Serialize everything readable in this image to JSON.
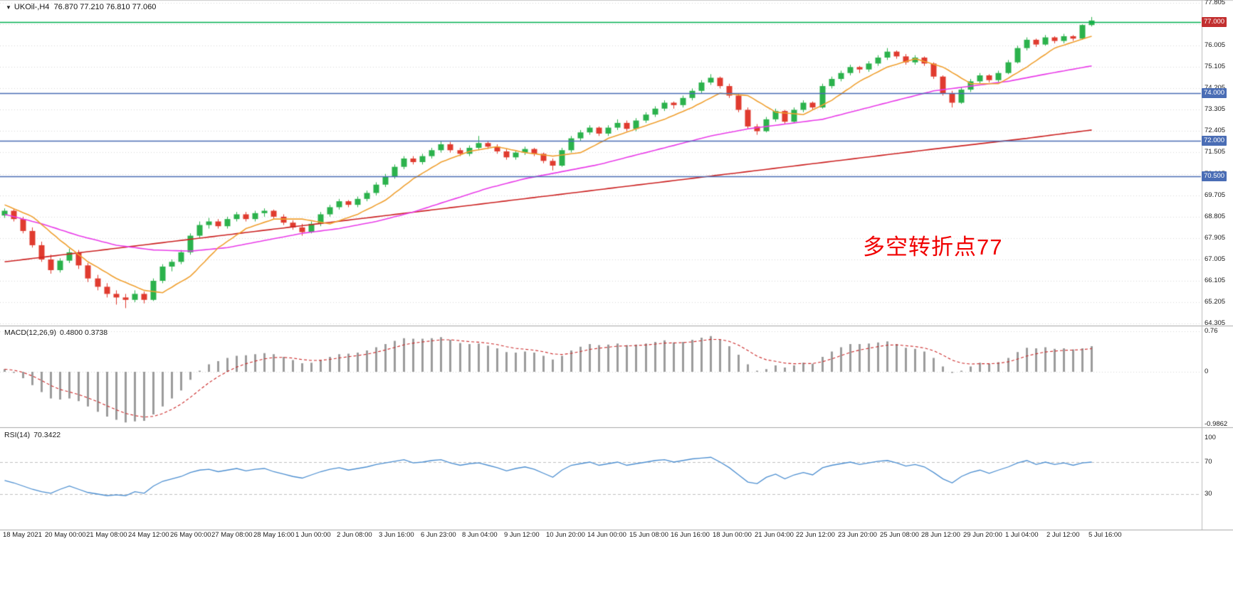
{
  "symbol_bar": {
    "collapse_icon": "▼",
    "symbol": "UKOil-,H4",
    "ohlc": "76.870 77.210 76.810 77.060"
  },
  "annotation": {
    "text": "多空转折点77",
    "color": "#f00000"
  },
  "macd_panel": {
    "label": "MACD(12,26,9)",
    "values": "0.4800 0.3738",
    "axis": [
      "0.76",
      "0",
      "-0.9862"
    ]
  },
  "rsi_panel": {
    "label": "RSI(14)",
    "value": "70.3422",
    "axis": [
      "100",
      "70",
      "30"
    ]
  },
  "colors": {
    "up": "#2bb24c",
    "down": "#e03b2f",
    "ma_fast": "#f0a030",
    "ma_mid": "#e93ce9",
    "ma_slow": "#cc2222",
    "hline_blue": "#4a6db5",
    "hline_green": "#00b050",
    "price_box_red": "#c22f2f",
    "macd_hist": "#9b9b9b",
    "macd_signal": "#cc2929",
    "rsi_line": "#4d8fd1",
    "grid": "#d8d8d8",
    "separator": "#a8a8a8",
    "axis_text": "#1a1a1a"
  },
  "chart_data": {
    "type": "candlestick",
    "symbol": "UKOil-",
    "timeframe": "H4",
    "title": "UKOil-,H4 76.870 77.210 76.810 77.060",
    "current_bar": {
      "open": 76.87,
      "high": 77.21,
      "low": 76.81,
      "close": 77.06
    },
    "y_axis": {
      "min": 64.305,
      "max": 77.805,
      "step": 0.9
    },
    "horizontal_lines": [
      {
        "price": 77.0,
        "label": "77.000",
        "color": "green"
      },
      {
        "price": 74.0,
        "label": "74.000",
        "color": "blue"
      },
      {
        "price": 72.0,
        "label": "72.000",
        "color": "blue"
      },
      {
        "price": 70.5,
        "label": "70.500",
        "color": "blue"
      }
    ],
    "x_labels": [
      "18 May 2021",
      "20 May 00:00",
      "21 May 08:00",
      "24 May 12:00",
      "26 May 00:00",
      "27 May 08:00",
      "28 May 16:00",
      "1 Jun 00:00",
      "2 Jun 08:00",
      "3 Jun 16:00",
      "6 Jun 23:00",
      "8 Jun 04:00",
      "9 Jun 12:00",
      "10 Jun 20:00",
      "14 Jun 00:00",
      "15 Jun 08:00",
      "16 Jun 16:00",
      "18 Jun 00:00",
      "21 Jun 04:00",
      "22 Jun 12:00",
      "23 Jun 20:00",
      "25 Jun 08:00",
      "28 Jun 12:00",
      "29 Jun 20:00",
      "1 Jul 04:00",
      "2 Jul 12:00",
      "5 Jul 16:00"
    ],
    "candles": [
      [
        68.85,
        69.15,
        68.75,
        69.05
      ],
      [
        69.05,
        69.15,
        68.6,
        68.7
      ],
      [
        68.7,
        68.8,
        68.1,
        68.2
      ],
      [
        68.2,
        68.35,
        67.5,
        67.6
      ],
      [
        67.6,
        67.75,
        66.9,
        67.0
      ],
      [
        67.0,
        67.2,
        66.4,
        66.55
      ],
      [
        66.55,
        67.05,
        66.45,
        66.95
      ],
      [
        66.95,
        67.45,
        66.85,
        67.3
      ],
      [
        67.3,
        67.4,
        66.6,
        66.75
      ],
      [
        66.75,
        66.85,
        66.05,
        66.2
      ],
      [
        66.2,
        66.35,
        65.7,
        65.85
      ],
      [
        65.85,
        66.0,
        65.4,
        65.55
      ],
      [
        65.55,
        65.7,
        65.1,
        65.4
      ],
      [
        65.4,
        65.55,
        64.95,
        65.3
      ],
      [
        65.3,
        65.7,
        65.2,
        65.55
      ],
      [
        65.55,
        65.65,
        65.15,
        65.3
      ],
      [
        65.3,
        66.2,
        65.25,
        66.1
      ],
      [
        66.1,
        66.8,
        66.0,
        66.7
      ],
      [
        66.7,
        67.0,
        66.5,
        66.9
      ],
      [
        66.9,
        67.4,
        66.8,
        67.3
      ],
      [
        67.3,
        68.1,
        67.2,
        68.0
      ],
      [
        68.0,
        68.6,
        67.9,
        68.45
      ],
      [
        68.45,
        68.75,
        68.3,
        68.6
      ],
      [
        68.6,
        68.7,
        68.3,
        68.4
      ],
      [
        68.4,
        68.8,
        68.3,
        68.7
      ],
      [
        68.7,
        69.0,
        68.6,
        68.9
      ],
      [
        68.9,
        69.0,
        68.6,
        68.7
      ],
      [
        68.7,
        69.05,
        68.6,
        68.95
      ],
      [
        68.95,
        69.15,
        68.8,
        69.05
      ],
      [
        69.05,
        69.1,
        68.7,
        68.8
      ],
      [
        68.8,
        68.9,
        68.45,
        68.55
      ],
      [
        68.55,
        68.65,
        68.25,
        68.35
      ],
      [
        68.35,
        68.5,
        68.0,
        68.15
      ],
      [
        68.15,
        68.6,
        68.1,
        68.5
      ],
      [
        68.5,
        69.0,
        68.4,
        68.9
      ],
      [
        68.9,
        69.3,
        68.8,
        69.2
      ],
      [
        69.2,
        69.55,
        69.1,
        69.45
      ],
      [
        69.45,
        69.5,
        69.2,
        69.3
      ],
      [
        69.3,
        69.65,
        69.2,
        69.55
      ],
      [
        69.55,
        69.9,
        69.45,
        69.8
      ],
      [
        69.8,
        70.25,
        69.7,
        70.15
      ],
      [
        70.15,
        70.6,
        70.05,
        70.5
      ],
      [
        70.5,
        71.0,
        70.4,
        70.9
      ],
      [
        70.9,
        71.35,
        70.8,
        71.25
      ],
      [
        71.25,
        71.35,
        71.0,
        71.1
      ],
      [
        71.1,
        71.45,
        71.0,
        71.35
      ],
      [
        71.35,
        71.7,
        71.25,
        71.6
      ],
      [
        71.6,
        72.0,
        71.5,
        71.85
      ],
      [
        71.85,
        71.95,
        71.5,
        71.6
      ],
      [
        71.6,
        71.7,
        71.35,
        71.45
      ],
      [
        71.45,
        71.8,
        71.35,
        71.7
      ],
      [
        71.7,
        72.2,
        71.6,
        71.9
      ],
      [
        71.9,
        72.0,
        71.65,
        71.75
      ],
      [
        71.75,
        71.85,
        71.45,
        71.55
      ],
      [
        71.55,
        71.65,
        71.2,
        71.3
      ],
      [
        71.3,
        71.6,
        71.2,
        71.5
      ],
      [
        71.5,
        71.75,
        71.4,
        71.65
      ],
      [
        71.65,
        71.7,
        71.35,
        71.45
      ],
      [
        71.45,
        71.5,
        71.05,
        71.15
      ],
      [
        71.15,
        71.25,
        70.75,
        70.95
      ],
      [
        70.95,
        71.7,
        70.9,
        71.6
      ],
      [
        71.6,
        72.2,
        71.5,
        72.1
      ],
      [
        72.1,
        72.45,
        72.0,
        72.35
      ],
      [
        72.35,
        72.65,
        72.25,
        72.55
      ],
      [
        72.55,
        72.6,
        72.2,
        72.3
      ],
      [
        72.3,
        72.65,
        72.2,
        72.55
      ],
      [
        72.55,
        72.9,
        72.45,
        72.75
      ],
      [
        72.75,
        72.85,
        72.4,
        72.5
      ],
      [
        72.5,
        72.95,
        72.4,
        72.85
      ],
      [
        72.85,
        73.2,
        72.75,
        73.1
      ],
      [
        73.1,
        73.45,
        73.0,
        73.35
      ],
      [
        73.35,
        73.7,
        73.25,
        73.6
      ],
      [
        73.6,
        73.65,
        73.35,
        73.5
      ],
      [
        73.5,
        73.9,
        73.4,
        73.8
      ],
      [
        73.8,
        74.2,
        73.7,
        74.1
      ],
      [
        74.1,
        74.55,
        74.0,
        74.45
      ],
      [
        74.45,
        74.8,
        74.35,
        74.65
      ],
      [
        74.65,
        74.7,
        74.2,
        74.3
      ],
      [
        74.3,
        74.4,
        73.8,
        73.9
      ],
      [
        73.9,
        74.0,
        73.2,
        73.3
      ],
      [
        73.3,
        73.4,
        72.5,
        72.6
      ],
      [
        72.6,
        72.7,
        72.25,
        72.4
      ],
      [
        72.4,
        73.0,
        72.35,
        72.9
      ],
      [
        72.9,
        73.35,
        72.8,
        73.25
      ],
      [
        73.25,
        73.3,
        72.7,
        72.8
      ],
      [
        72.8,
        73.4,
        72.75,
        73.3
      ],
      [
        73.3,
        73.7,
        73.2,
        73.6
      ],
      [
        73.6,
        73.65,
        73.3,
        73.4
      ],
      [
        73.4,
        74.4,
        73.35,
        74.3
      ],
      [
        74.3,
        74.7,
        74.2,
        74.6
      ],
      [
        74.6,
        74.95,
        74.5,
        74.85
      ],
      [
        74.85,
        75.2,
        74.75,
        75.1
      ],
      [
        75.1,
        75.15,
        74.85,
        75.0
      ],
      [
        75.0,
        75.35,
        74.9,
        75.25
      ],
      [
        75.25,
        75.6,
        75.15,
        75.5
      ],
      [
        75.5,
        75.9,
        75.4,
        75.75
      ],
      [
        75.75,
        75.8,
        75.45,
        75.55
      ],
      [
        75.55,
        75.65,
        75.2,
        75.3
      ],
      [
        75.3,
        75.6,
        75.2,
        75.5
      ],
      [
        75.5,
        75.55,
        75.15,
        75.25
      ],
      [
        75.25,
        75.3,
        74.6,
        74.7
      ],
      [
        74.7,
        74.75,
        73.9,
        74.0
      ],
      [
        74.0,
        74.1,
        73.4,
        73.6
      ],
      [
        73.6,
        74.25,
        73.55,
        74.15
      ],
      [
        74.15,
        74.6,
        74.05,
        74.5
      ],
      [
        74.5,
        74.85,
        74.4,
        74.75
      ],
      [
        74.75,
        74.8,
        74.45,
        74.55
      ],
      [
        74.55,
        74.95,
        74.45,
        74.85
      ],
      [
        74.85,
        75.4,
        74.8,
        75.3
      ],
      [
        75.3,
        76.0,
        75.25,
        75.9
      ],
      [
        75.9,
        76.35,
        75.8,
        76.25
      ],
      [
        76.25,
        76.3,
        75.95,
        76.05
      ],
      [
        76.05,
        76.45,
        76.0,
        76.35
      ],
      [
        76.35,
        76.4,
        76.1,
        76.2
      ],
      [
        76.2,
        76.5,
        76.1,
        76.4
      ],
      [
        76.4,
        76.45,
        76.2,
        76.3
      ],
      [
        76.3,
        76.9,
        76.25,
        76.87
      ],
      [
        76.87,
        77.21,
        76.81,
        77.06
      ]
    ],
    "moving_averages": {
      "fast_orange": [
        [
          0,
          69.3
        ],
        [
          3,
          68.8
        ],
        [
          6,
          67.8
        ],
        [
          9,
          66.9
        ],
        [
          12,
          66.2
        ],
        [
          15,
          65.7
        ],
        [
          17,
          65.6
        ],
        [
          20,
          66.3
        ],
        [
          23,
          67.5
        ],
        [
          26,
          68.3
        ],
        [
          29,
          68.7
        ],
        [
          32,
          68.7
        ],
        [
          35,
          68.5
        ],
        [
          38,
          68.9
        ],
        [
          41,
          69.5
        ],
        [
          44,
          70.4
        ],
        [
          47,
          71.1
        ],
        [
          50,
          71.55
        ],
        [
          53,
          71.75
        ],
        [
          56,
          71.5
        ],
        [
          59,
          71.35
        ],
        [
          62,
          71.5
        ],
        [
          65,
          72.1
        ],
        [
          68,
          72.5
        ],
        [
          71,
          72.9
        ],
        [
          74,
          73.4
        ],
        [
          77,
          74.0
        ],
        [
          80,
          73.9
        ],
        [
          83,
          73.2
        ],
        [
          86,
          73.1
        ],
        [
          89,
          73.7
        ],
        [
          92,
          74.5
        ],
        [
          95,
          75.1
        ],
        [
          98,
          75.45
        ],
        [
          101,
          75.1
        ],
        [
          104,
          74.4
        ],
        [
          107,
          74.4
        ],
        [
          110,
          75.1
        ],
        [
          113,
          75.9
        ],
        [
          117,
          76.4
        ]
      ],
      "mid_magenta": [
        [
          0,
          68.9
        ],
        [
          4,
          68.5
        ],
        [
          8,
          68.0
        ],
        [
          12,
          67.6
        ],
        [
          16,
          67.4
        ],
        [
          20,
          67.35
        ],
        [
          24,
          67.5
        ],
        [
          28,
          67.8
        ],
        [
          32,
          68.1
        ],
        [
          36,
          68.3
        ],
        [
          40,
          68.6
        ],
        [
          44,
          69.0
        ],
        [
          48,
          69.5
        ],
        [
          52,
          70.0
        ],
        [
          56,
          70.4
        ],
        [
          60,
          70.7
        ],
        [
          64,
          71.0
        ],
        [
          68,
          71.4
        ],
        [
          72,
          71.8
        ],
        [
          76,
          72.2
        ],
        [
          80,
          72.5
        ],
        [
          84,
          72.7
        ],
        [
          88,
          72.9
        ],
        [
          92,
          73.3
        ],
        [
          96,
          73.7
        ],
        [
          100,
          74.1
        ],
        [
          104,
          74.3
        ],
        [
          108,
          74.5
        ],
        [
          112,
          74.8
        ],
        [
          117,
          75.15
        ]
      ],
      "slow_red": [
        [
          0,
          66.9
        ],
        [
          20,
          67.85
        ],
        [
          40,
          68.8
        ],
        [
          60,
          69.75
        ],
        [
          80,
          70.7
        ],
        [
          100,
          71.65
        ],
        [
          110,
          72.1
        ],
        [
          117,
          72.45
        ]
      ]
    },
    "macd": {
      "current_macd": 0.48,
      "current_signal": 0.3738,
      "axis_max": 0.76,
      "axis_min": -0.9862,
      "histogram": [
        0.05,
        -0.02,
        -0.12,
        -0.25,
        -0.38,
        -0.5,
        -0.52,
        -0.5,
        -0.55,
        -0.65,
        -0.75,
        -0.84,
        -0.9,
        -0.95,
        -0.93,
        -0.92,
        -0.8,
        -0.65,
        -0.5,
        -0.35,
        -0.15,
        0.02,
        0.14,
        0.2,
        0.26,
        0.3,
        0.31,
        0.33,
        0.35,
        0.33,
        0.28,
        0.22,
        0.16,
        0.17,
        0.22,
        0.28,
        0.33,
        0.34,
        0.36,
        0.4,
        0.46,
        0.52,
        0.58,
        0.63,
        0.62,
        0.62,
        0.63,
        0.65,
        0.6,
        0.54,
        0.52,
        0.53,
        0.49,
        0.44,
        0.37,
        0.36,
        0.38,
        0.36,
        0.3,
        0.23,
        0.3,
        0.4,
        0.47,
        0.52,
        0.5,
        0.51,
        0.53,
        0.5,
        0.51,
        0.53,
        0.56,
        0.59,
        0.55,
        0.56,
        0.6,
        0.64,
        0.67,
        0.6,
        0.48,
        0.32,
        0.14,
        0.02,
        0.05,
        0.12,
        0.08,
        0.12,
        0.17,
        0.15,
        0.28,
        0.38,
        0.46,
        0.52,
        0.52,
        0.53,
        0.55,
        0.57,
        0.52,
        0.45,
        0.43,
        0.38,
        0.26,
        0.1,
        -0.02,
        0.02,
        0.1,
        0.17,
        0.15,
        0.18,
        0.26,
        0.37,
        0.45,
        0.44,
        0.46,
        0.43,
        0.44,
        0.42,
        0.44,
        0.48
      ]
    },
    "rsi": {
      "current": 70.3422,
      "levels": [
        70,
        30
      ],
      "values": [
        47,
        44,
        40,
        36,
        33,
        31,
        36,
        40,
        36,
        32,
        30,
        28,
        29,
        28,
        33,
        31,
        40,
        46,
        49,
        52,
        57,
        60,
        61,
        58,
        60,
        62,
        59,
        61,
        62,
        58,
        55,
        52,
        50,
        54,
        58,
        61,
        63,
        60,
        62,
        64,
        67,
        69,
        71,
        73,
        69,
        70,
        72,
        73,
        69,
        66,
        68,
        69,
        66,
        63,
        59,
        62,
        64,
        61,
        56,
        51,
        60,
        66,
        68,
        70,
        66,
        68,
        70,
        66,
        68,
        70,
        72,
        73,
        70,
        72,
        74,
        75,
        76,
        70,
        63,
        54,
        45,
        43,
        51,
        55,
        49,
        54,
        57,
        54,
        63,
        66,
        68,
        70,
        67,
        69,
        71,
        72,
        69,
        65,
        67,
        64,
        57,
        49,
        44,
        52,
        57,
        60,
        56,
        60,
        64,
        69,
        72,
        67,
        70,
        67,
        69,
        66,
        69,
        70
      ]
    }
  }
}
